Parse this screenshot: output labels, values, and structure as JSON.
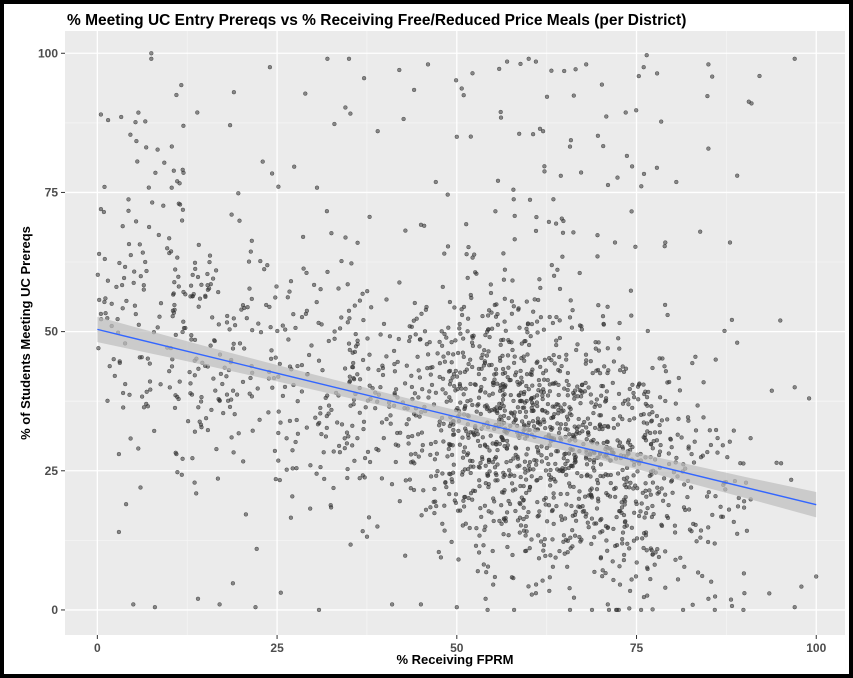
{
  "chart_data": {
    "type": "scatter",
    "title": "% Meeting UC Entry Prereqs vs % Receiving Free/Reduced Price Meals (per District)",
    "xlabel": "% Receiving FPRM",
    "ylabel": "% of Students Meeting UC Prereqs",
    "xlim": [
      -4.5,
      104
    ],
    "ylim": [
      -4.5,
      104
    ],
    "x_ticks": [
      0,
      25,
      50,
      75,
      100
    ],
    "y_ticks": [
      0,
      25,
      50,
      75,
      100
    ],
    "x_tick_labels": [
      "0",
      "25",
      "50",
      "75",
      "100"
    ],
    "y_tick_labels": [
      "0",
      "25",
      "50",
      "75",
      "100"
    ],
    "grid": true,
    "legend": "none",
    "trend_line": {
      "method": "linear",
      "x": [
        0,
        100
      ],
      "y": [
        50.4,
        18.9
      ],
      "se_band": 1.2
    },
    "colors": {
      "panel_background": "#ebebeb",
      "grid_major": "#ffffff",
      "grid_minor": "#f5f5f5",
      "points": "#333333",
      "trend_line": "#3366ff",
      "se_band": "#bdbdbd"
    },
    "sample_points": [
      [
        0.5,
        89
      ],
      [
        1,
        76
      ],
      [
        1.5,
        88
      ],
      [
        7.5,
        100
      ],
      [
        7.5,
        99
      ],
      [
        11,
        92.5
      ],
      [
        19,
        93
      ],
      [
        24,
        97.5
      ],
      [
        32,
        99
      ],
      [
        35,
        99
      ],
      [
        42,
        97
      ],
      [
        46,
        98
      ],
      [
        57,
        98.5
      ],
      [
        61,
        98.5
      ],
      [
        68,
        98
      ],
      [
        76,
        97.5
      ],
      [
        85,
        98
      ],
      [
        97,
        99
      ],
      [
        0.5,
        72
      ],
      [
        2,
        55
      ],
      [
        2,
        51
      ],
      [
        3,
        28
      ],
      [
        3,
        14
      ],
      [
        5,
        1
      ],
      [
        8,
        0.5
      ],
      [
        14,
        2
      ],
      [
        17,
        1
      ],
      [
        22,
        0.5
      ],
      [
        41,
        1
      ],
      [
        45,
        1
      ],
      [
        50,
        0.5
      ],
      [
        54,
        2
      ],
      [
        61,
        3
      ],
      [
        71,
        1
      ],
      [
        79,
        4
      ],
      [
        85,
        2
      ],
      [
        90,
        3
      ],
      [
        97,
        0.5
      ],
      [
        100,
        6
      ],
      [
        99,
        38
      ],
      [
        97,
        40
      ],
      [
        95,
        52
      ],
      [
        91,
        91
      ],
      [
        89,
        78
      ],
      [
        89,
        48
      ],
      [
        88,
        66
      ],
      [
        79,
        66
      ],
      [
        72,
        66
      ],
      [
        62,
        86
      ],
      [
        60,
        99
      ],
      [
        50,
        85
      ],
      [
        39,
        86
      ],
      [
        11,
        28
      ],
      [
        6,
        22
      ],
      [
        4,
        19
      ]
    ]
  }
}
